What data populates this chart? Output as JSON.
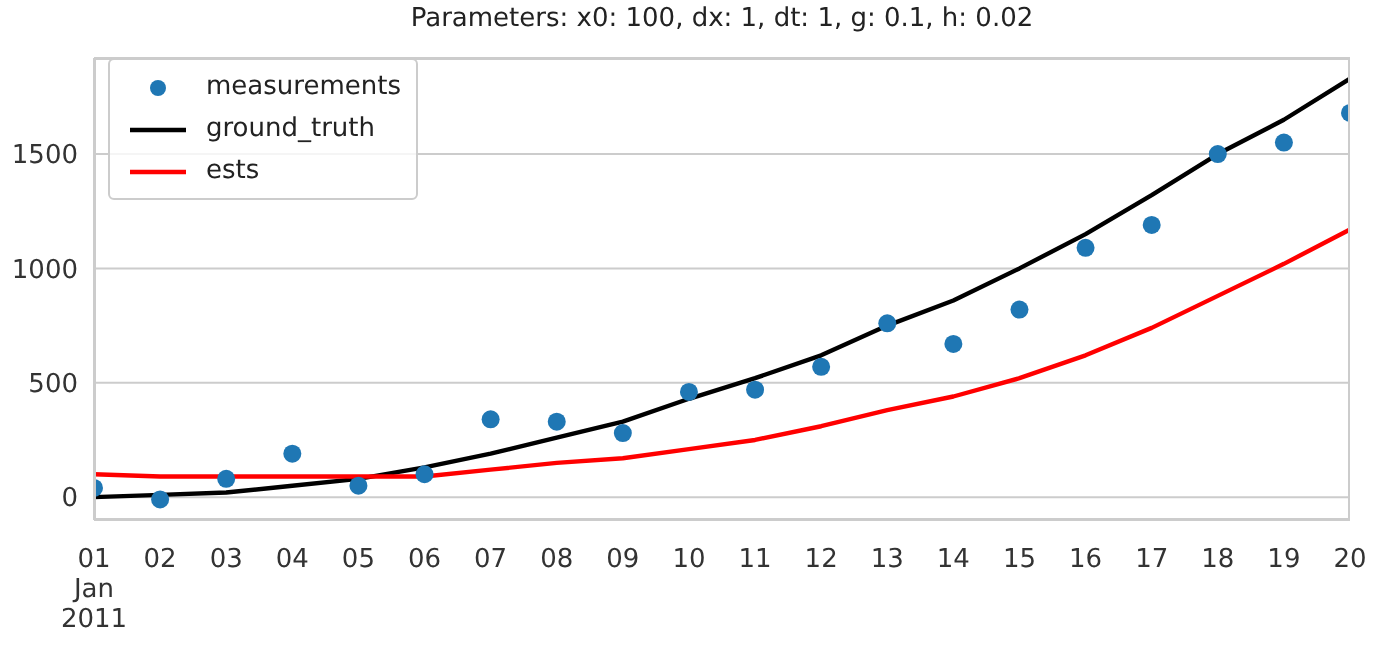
{
  "chart_data": {
    "type": "line",
    "title": "Parameters: x0: 100, dx: 1, dt: 1, g: 0.1, h: 0.02",
    "x": [
      "2011-01-01",
      "2011-01-02",
      "2011-01-03",
      "2011-01-04",
      "2011-01-05",
      "2011-01-06",
      "2011-01-07",
      "2011-01-08",
      "2011-01-09",
      "2011-01-10",
      "2011-01-11",
      "2011-01-12",
      "2011-01-13",
      "2011-01-14",
      "2011-01-15",
      "2011-01-16",
      "2011-01-17",
      "2011-01-18",
      "2011-01-19",
      "2011-01-20"
    ],
    "series": [
      {
        "name": "measurements",
        "type": "scatter",
        "marker": "circle",
        "color": "#1f77b4",
        "values": [
          40,
          -10,
          80,
          190,
          50,
          100,
          340,
          330,
          280,
          460,
          470,
          570,
          760,
          670,
          820,
          1090,
          1190,
          1500,
          1550,
          1680
        ]
      },
      {
        "name": "ground_truth",
        "color": "#000000",
        "values": [
          0,
          10,
          20,
          50,
          80,
          130,
          190,
          260,
          330,
          430,
          520,
          620,
          750,
          860,
          1000,
          1150,
          1320,
          1500,
          1650,
          1830
        ]
      },
      {
        "name": "ests",
        "color": "#ff0000",
        "values": [
          100,
          90,
          90,
          90,
          90,
          90,
          120,
          150,
          170,
          210,
          250,
          310,
          380,
          440,
          520,
          620,
          740,
          880,
          1020,
          1170
        ]
      }
    ],
    "xlim": [
      "2011-01-01",
      "2011-01-20"
    ],
    "xticks": [
      {
        "value": "2011-01-01",
        "label": "01\nJan\n2011"
      },
      {
        "value": "2011-01-02",
        "label": "02"
      },
      {
        "value": "2011-01-03",
        "label": "03"
      },
      {
        "value": "2011-01-04",
        "label": "04"
      },
      {
        "value": "2011-01-05",
        "label": "05"
      },
      {
        "value": "2011-01-06",
        "label": "06"
      },
      {
        "value": "2011-01-07",
        "label": "07"
      },
      {
        "value": "2011-01-08",
        "label": "08"
      },
      {
        "value": "2011-01-09",
        "label": "09"
      },
      {
        "value": "2011-01-10",
        "label": "10"
      },
      {
        "value": "2011-01-11",
        "label": "11"
      },
      {
        "value": "2011-01-12",
        "label": "12"
      },
      {
        "value": "2011-01-13",
        "label": "13"
      },
      {
        "value": "2011-01-14",
        "label": "14"
      },
      {
        "value": "2011-01-15",
        "label": "15"
      },
      {
        "value": "2011-01-16",
        "label": "16"
      },
      {
        "value": "2011-01-17",
        "label": "17"
      },
      {
        "value": "2011-01-18",
        "label": "18"
      },
      {
        "value": "2011-01-19",
        "label": "19"
      },
      {
        "value": "2011-01-20",
        "label": "20"
      }
    ],
    "ylim": [
      -100,
      1920
    ],
    "yticks": [
      0,
      500,
      1000,
      1500
    ],
    "grid": "y",
    "legend": "top left"
  }
}
